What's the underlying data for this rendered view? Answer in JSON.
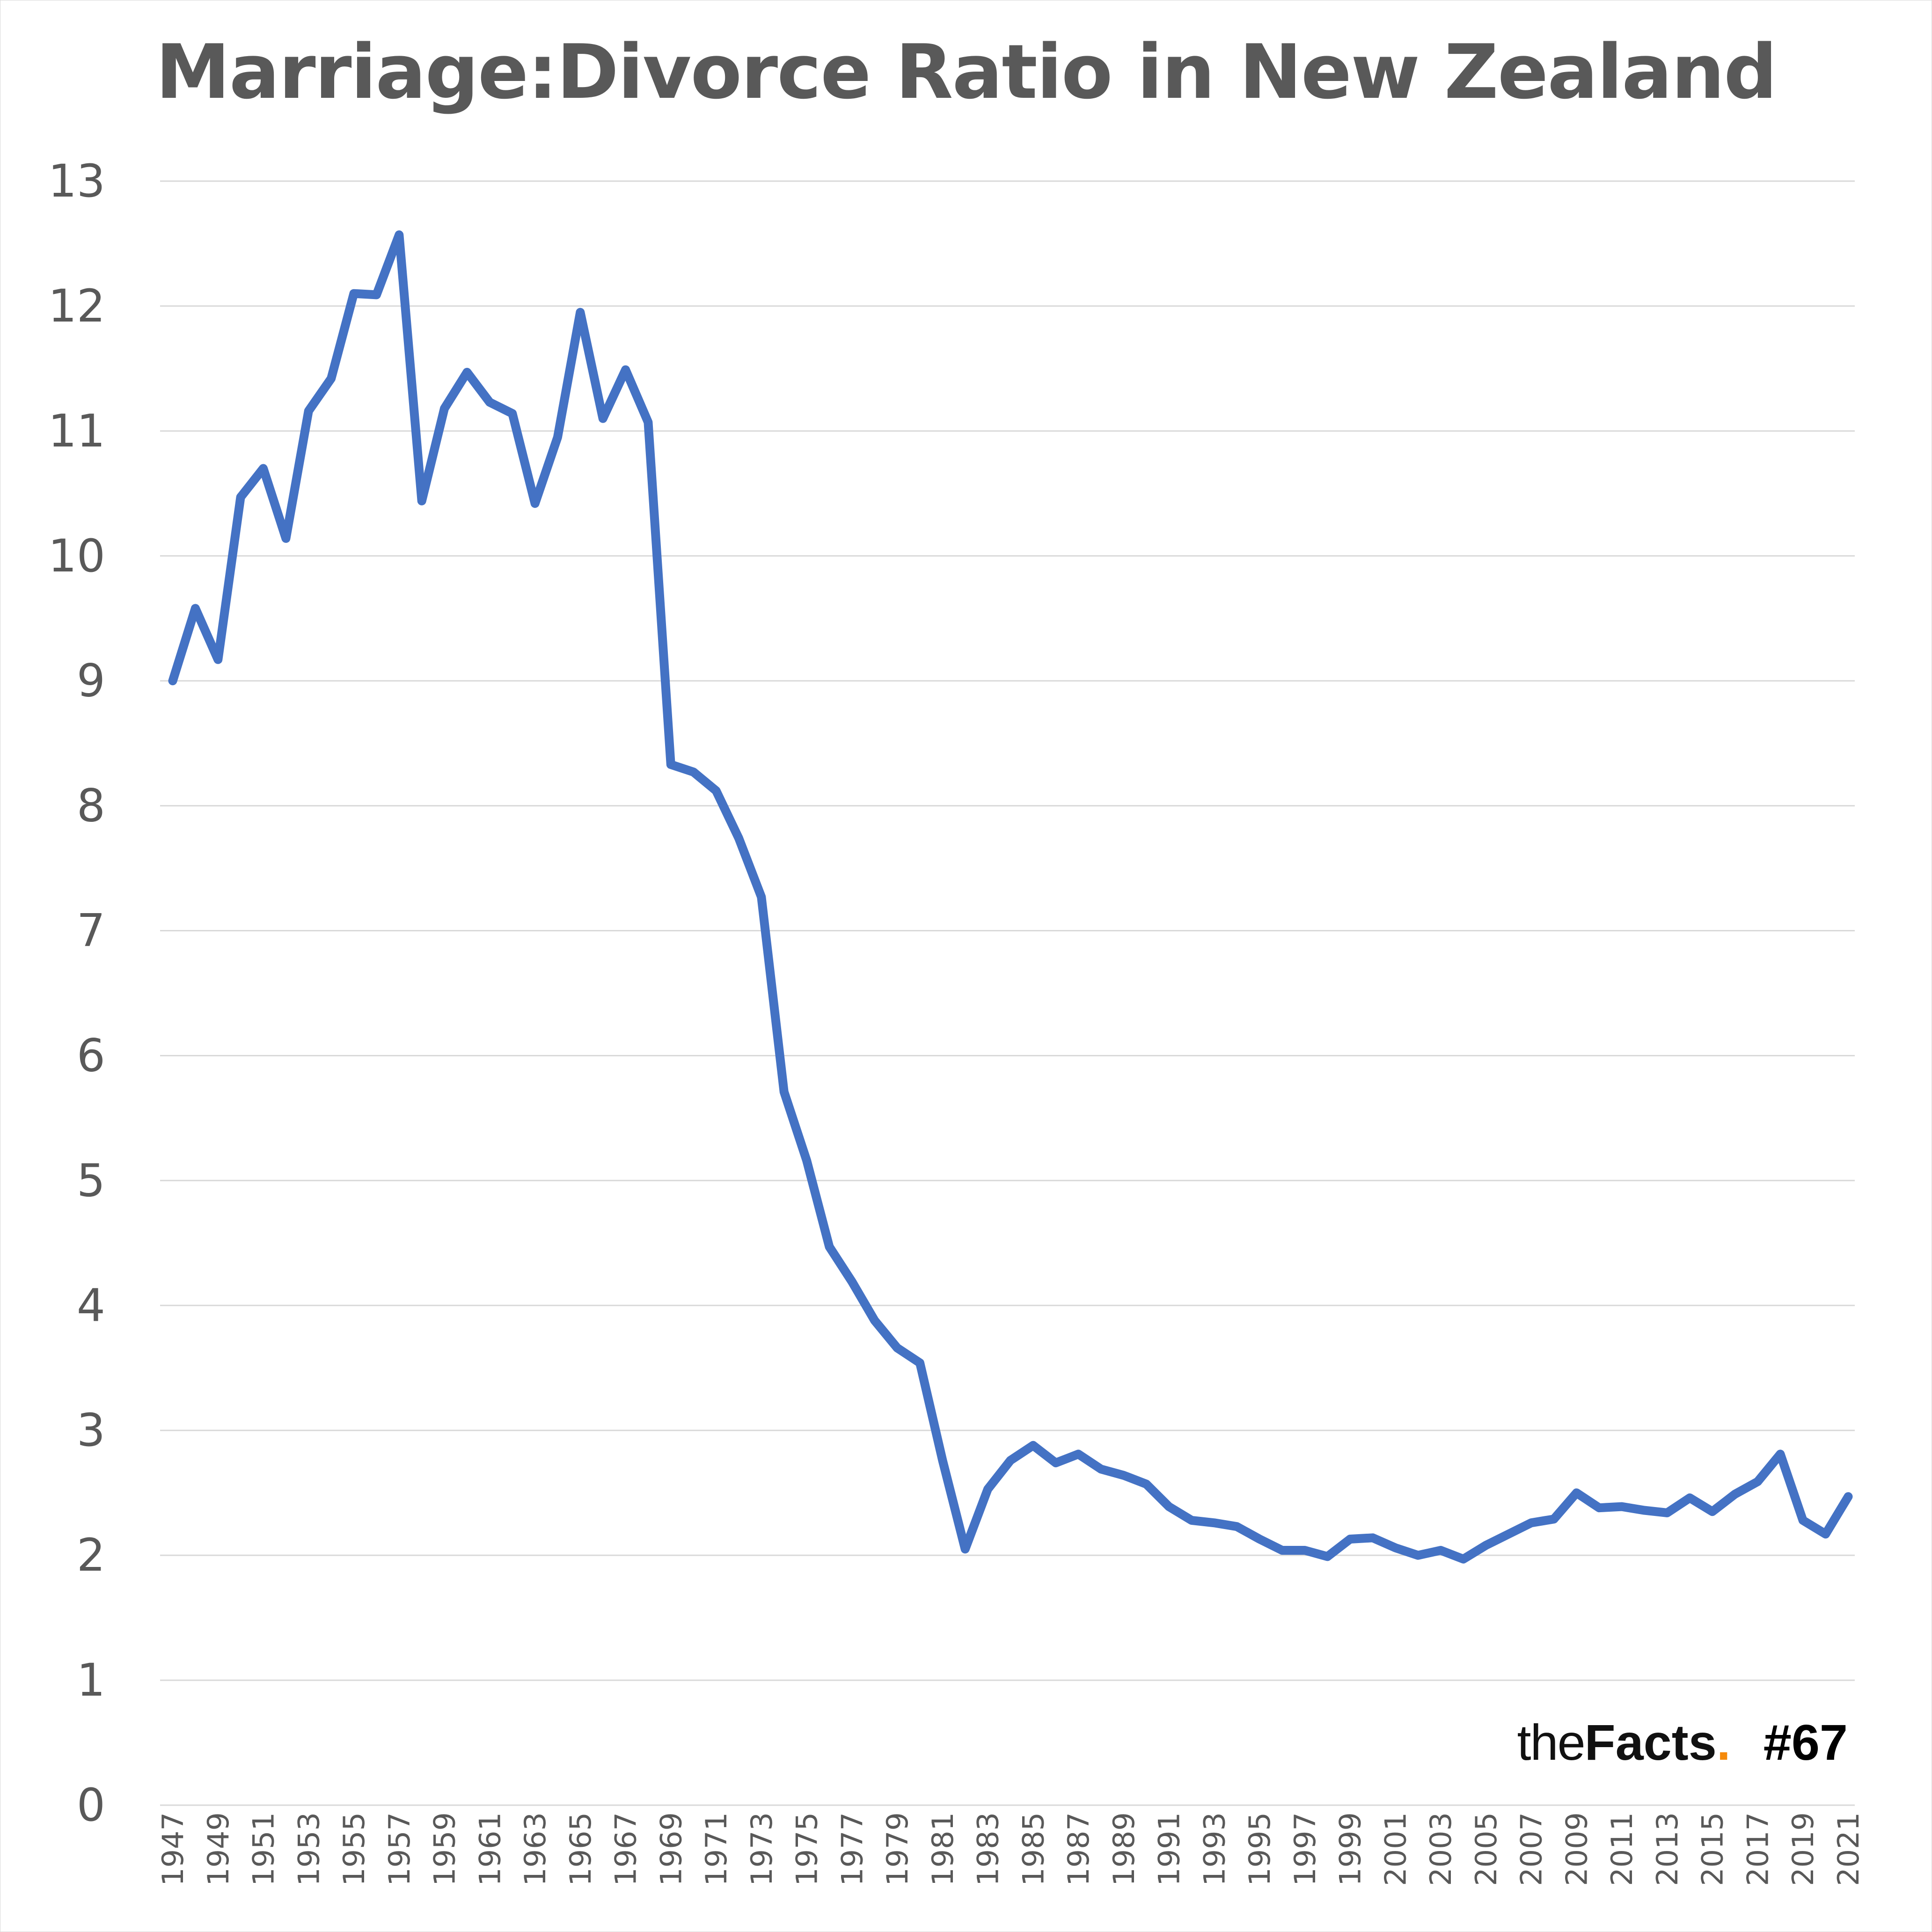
{
  "chart_data": {
    "type": "line",
    "title": "Marriage:Divorce Ratio in New Zealand",
    "xlabel": "",
    "ylabel": "",
    "ylim": [
      0,
      13
    ],
    "yticks": [
      0,
      1,
      2,
      3,
      4,
      5,
      6,
      7,
      8,
      9,
      10,
      11,
      12,
      13
    ],
    "xlim": [
      1947,
      2021
    ],
    "xtick_step": 2,
    "grid": "horizontal",
    "legend": "none",
    "color": "#4472C4",
    "x": [
      1947,
      1948,
      1949,
      1950,
      1951,
      1952,
      1953,
      1954,
      1955,
      1956,
      1957,
      1958,
      1959,
      1960,
      1961,
      1962,
      1963,
      1964,
      1965,
      1966,
      1967,
      1968,
      1969,
      1970,
      1971,
      1972,
      1973,
      1974,
      1975,
      1976,
      1977,
      1978,
      1979,
      1980,
      1981,
      1982,
      1983,
      1984,
      1985,
      1986,
      1987,
      1988,
      1989,
      1990,
      1991,
      1992,
      1993,
      1994,
      1995,
      1996,
      1997,
      1998,
      1999,
      2000,
      2001,
      2002,
      2003,
      2004,
      2005,
      2006,
      2007,
      2008,
      2009,
      2010,
      2011,
      2012,
      2013,
      2014,
      2015,
      2016,
      2017,
      2018,
      2019,
      2020,
      2021
    ],
    "values": [
      9.0,
      9.58,
      9.17,
      10.47,
      10.7,
      10.14,
      11.16,
      11.42,
      12.1,
      12.09,
      12.57,
      10.44,
      11.18,
      11.47,
      11.23,
      11.14,
      10.42,
      10.95,
      11.95,
      11.1,
      11.49,
      11.07,
      8.33,
      8.27,
      8.12,
      7.74,
      7.27,
      5.71,
      5.16,
      4.47,
      4.19,
      3.88,
      3.66,
      3.54,
      2.76,
      2.05,
      2.53,
      2.76,
      2.88,
      2.74,
      2.81,
      2.69,
      2.64,
      2.57,
      2.39,
      2.28,
      2.26,
      2.23,
      2.13,
      2.04,
      2.04,
      1.99,
      2.13,
      2.14,
      2.06,
      2.0,
      2.04,
      1.97,
      2.08,
      2.17,
      2.26,
      2.29,
      2.5,
      2.38,
      2.39,
      2.36,
      2.34,
      2.46,
      2.35,
      2.49,
      2.59,
      2.81,
      2.28,
      2.17,
      2.47
    ]
  },
  "watermark": {
    "the": "the",
    "facts": "Facts",
    "dot": ".",
    "number": "#67"
  }
}
